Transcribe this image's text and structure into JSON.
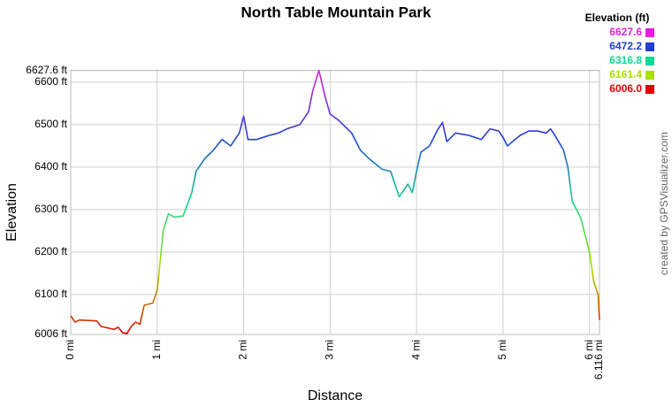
{
  "chart_data": {
    "type": "line",
    "title": "North Table Mountain Park",
    "x_label": "Distance",
    "y_label": "Elevation",
    "credit": "created by GPSVisualizer.com",
    "legend_title": "Elevation (ft)",
    "color_scale": [
      {
        "value": 6627.6,
        "color": "#e020e0"
      },
      {
        "value": 6472.2,
        "color": "#1e3fd0"
      },
      {
        "value": 6316.8,
        "color": "#12d890"
      },
      {
        "value": 6161.4,
        "color": "#a8e000"
      },
      {
        "value": 6006,
        "label": "6006.0",
        "color": "#e00000"
      }
    ],
    "x": [
      0,
      0.05,
      0.1,
      0.3,
      0.35,
      0.5,
      0.55,
      0.6,
      0.65,
      0.7,
      0.75,
      0.8,
      0.85,
      0.95,
      1.0,
      1.03,
      1.07,
      1.13,
      1.2,
      1.3,
      1.4,
      1.45,
      1.55,
      1.65,
      1.75,
      1.85,
      1.95,
      2.0,
      2.05,
      2.15,
      2.3,
      2.4,
      2.5,
      2.65,
      2.75,
      2.8,
      2.87,
      2.95,
      3.0,
      3.1,
      3.25,
      3.35,
      3.45,
      3.6,
      3.7,
      3.8,
      3.9,
      3.95,
      4.0,
      4.05,
      4.15,
      4.25,
      4.3,
      4.35,
      4.45,
      4.6,
      4.75,
      4.85,
      4.95,
      5.0,
      5.05,
      5.2,
      5.3,
      5.4,
      5.5,
      5.55,
      5.6,
      5.7,
      5.75,
      5.8,
      5.9,
      6.0,
      6.05,
      6.1,
      6.116
    ],
    "values": [
      6050,
      6035,
      6040,
      6038,
      6025,
      6018,
      6023,
      6010,
      6008,
      6025,
      6035,
      6030,
      6075,
      6080,
      6110,
      6170,
      6250,
      6290,
      6282,
      6285,
      6340,
      6390,
      6420,
      6440,
      6465,
      6450,
      6480,
      6520,
      6465,
      6465,
      6475,
      6480,
      6490,
      6500,
      6530,
      6580,
      6627.6,
      6560,
      6525,
      6510,
      6480,
      6440,
      6420,
      6395,
      6390,
      6330,
      6360,
      6340,
      6390,
      6435,
      6450,
      6490,
      6505,
      6460,
      6480,
      6475,
      6465,
      6490,
      6485,
      6470,
      6450,
      6475,
      6485,
      6485,
      6480,
      6490,
      6475,
      6440,
      6400,
      6320,
      6280,
      6200,
      6130,
      6100,
      6040
    ],
    "xlim": [
      0,
      6.116
    ],
    "ylim": [
      6006,
      6627.6
    ],
    "xticks": [
      {
        "value": 0,
        "label": "0 mi"
      },
      {
        "value": 1,
        "label": "1 mi"
      },
      {
        "value": 2,
        "label": "2 mi"
      },
      {
        "value": 3,
        "label": "3 mi"
      },
      {
        "value": 4,
        "label": "4 mi"
      },
      {
        "value": 5,
        "label": "5 mi"
      },
      {
        "value": 6,
        "label": "6 mi"
      },
      {
        "value": 6.116,
        "label": "6.116 mi"
      }
    ],
    "yticks": [
      {
        "value": 6006,
        "label": "6006 ft"
      },
      {
        "value": 6100,
        "label": "6100 ft"
      },
      {
        "value": 6200,
        "label": "6200 ft"
      },
      {
        "value": 6300,
        "label": "6300 ft"
      },
      {
        "value": 6400,
        "label": "6400 ft"
      },
      {
        "value": 6500,
        "label": "6500 ft"
      },
      {
        "value": 6600,
        "label": "6600 ft"
      },
      {
        "value": 6627.6,
        "label": "6627.6 ft"
      }
    ],
    "grid": true
  }
}
